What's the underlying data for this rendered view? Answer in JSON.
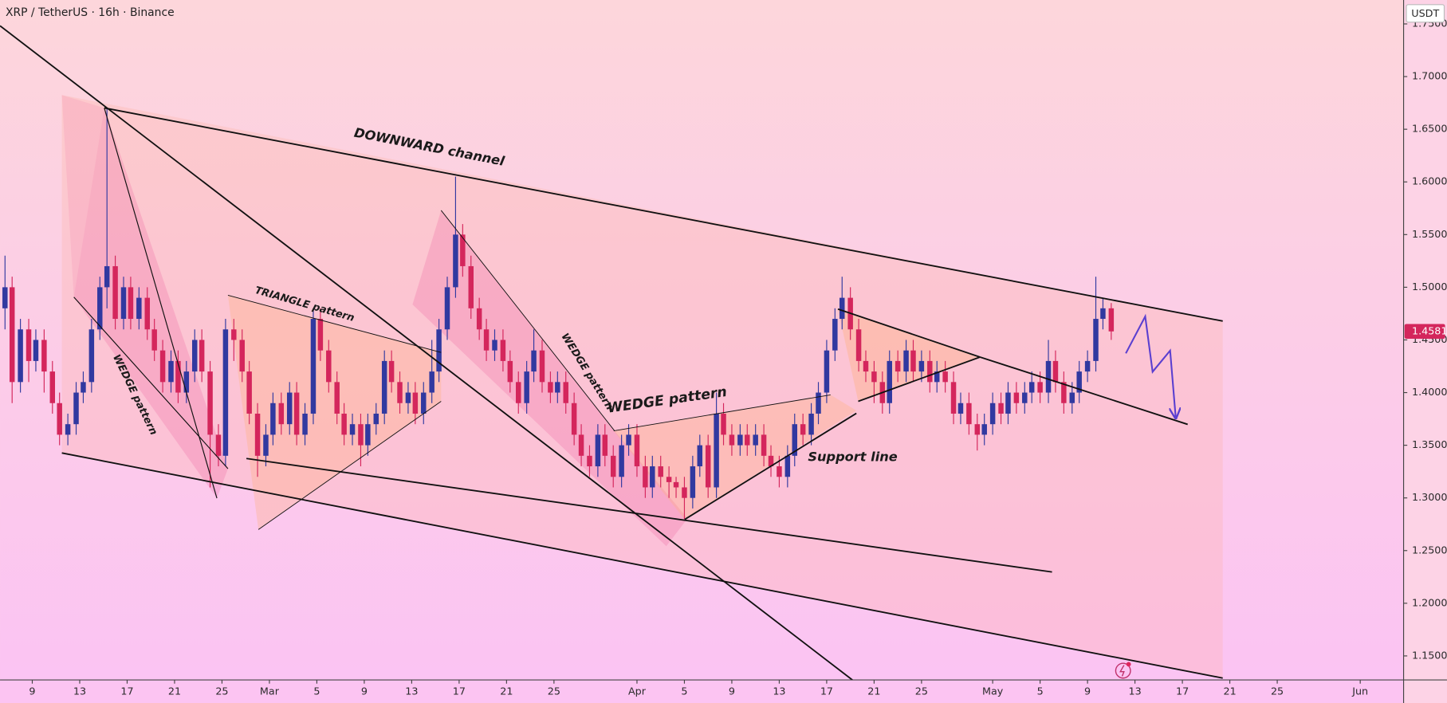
{
  "chart_data": {
    "type": "candlestick",
    "title": "XRP / TetherUS · 16h · Binance",
    "currency": "USDT",
    "up_color": "#3139a0",
    "down_color": "#d4265c",
    "annotations": [
      "DOWNWARD channel",
      "TRIANGLE pattern",
      "WEDGE pattern",
      "WEDGE pattern",
      "WEDGE pattern",
      "Support line"
    ],
    "xlim": [
      37.28,
      155.58
    ],
    "xticks": [
      {
        "value": 40,
        "label": "9"
      },
      {
        "value": 44,
        "label": "13"
      },
      {
        "value": 48,
        "label": "17"
      },
      {
        "value": 52,
        "label": "21"
      },
      {
        "value": 56,
        "label": "25"
      },
      {
        "value": 60,
        "label": "Mar"
      },
      {
        "value": 64,
        "label": "5"
      },
      {
        "value": 68,
        "label": "9"
      },
      {
        "value": 72,
        "label": "13"
      },
      {
        "value": 76,
        "label": "17"
      },
      {
        "value": 80,
        "label": "21"
      },
      {
        "value": 84,
        "label": "25"
      },
      {
        "value": 91,
        "label": "Apr"
      },
      {
        "value": 95,
        "label": "5"
      },
      {
        "value": 99,
        "label": "9"
      },
      {
        "value": 103,
        "label": "13"
      },
      {
        "value": 107,
        "label": "17"
      },
      {
        "value": 111,
        "label": "21"
      },
      {
        "value": 115,
        "label": "25"
      },
      {
        "value": 121,
        "label": "May"
      },
      {
        "value": 125,
        "label": "5"
      },
      {
        "value": 129,
        "label": "9"
      },
      {
        "value": 133,
        "label": "13"
      },
      {
        "value": 137,
        "label": "17"
      },
      {
        "value": 141,
        "label": "21"
      },
      {
        "value": 145,
        "label": "25"
      },
      {
        "value": 152,
        "label": "Jun"
      }
    ],
    "ylim": [
      1.1272,
      1.7727
    ],
    "yticks": [
      {
        "value": 1.15,
        "label": "1.1500"
      },
      {
        "value": 1.2,
        "label": "1.2000"
      },
      {
        "value": 1.25,
        "label": "1.2500"
      },
      {
        "value": 1.3,
        "label": "1.3000"
      },
      {
        "value": 1.35,
        "label": "1.3500"
      },
      {
        "value": 1.4,
        "label": "1.4000"
      },
      {
        "value": 1.45,
        "label": "1.4500"
      },
      {
        "value": 1.5,
        "label": "1.5000"
      },
      {
        "value": 1.55,
        "label": "1.5500"
      },
      {
        "value": 1.6,
        "label": "1.6000"
      },
      {
        "value": 1.65,
        "label": "1.6500"
      },
      {
        "value": 1.7,
        "label": "1.7000"
      },
      {
        "value": 1.75,
        "label": "1.7500"
      }
    ],
    "x": [
      37.7,
      38.3,
      39,
      39.7,
      40.3,
      41,
      41.7,
      42.3,
      43,
      43.7,
      44.3,
      45,
      45.7,
      46.3,
      47,
      47.7,
      48.3,
      49,
      49.7,
      50.3,
      51,
      51.7,
      52.3,
      53,
      53.7,
      54.3,
      55,
      55.7,
      56.3,
      57,
      57.7,
      58.3,
      59,
      59.7,
      60.3,
      61,
      61.7,
      62.3,
      63,
      63.7,
      64.3,
      65,
      65.7,
      66.3,
      67,
      67.7,
      68.3,
      69,
      69.7,
      70.3,
      71,
      71.7,
      72.3,
      73,
      73.7,
      74.3,
      75,
      75.7,
      76.3,
      77,
      77.7,
      78.3,
      79,
      79.7,
      80.3,
      81,
      81.7,
      82.3,
      83,
      83.7,
      84.3,
      85,
      85.7,
      86.3,
      87,
      87.7,
      88.3,
      89,
      89.7,
      90.3,
      91,
      91.7,
      92.3,
      93,
      93.7,
      94.3,
      95,
      95.7,
      96.3,
      97,
      97.7,
      98.3,
      99,
      99.7,
      100.3,
      101,
      101.7,
      102.3,
      103,
      103.7,
      104.3,
      105,
      105.7,
      106.3,
      107,
      107.7,
      108.3,
      109,
      109.7,
      110.3,
      111,
      111.7,
      112.3,
      113,
      113.7,
      114.3,
      115,
      115.7,
      116.3,
      117,
      117.7,
      118.3,
      119,
      119.7,
      120.3,
      121,
      121.7,
      122.3,
      123,
      123.7,
      124.3,
      125,
      125.7,
      126.3,
      127,
      127.7,
      128.3,
      129,
      129.7,
      130.3,
      131
    ],
    "open": [
      1.48,
      1.5,
      1.41,
      1.46,
      1.43,
      1.45,
      1.42,
      1.39,
      1.36,
      1.37,
      1.4,
      1.41,
      1.46,
      1.5,
      1.52,
      1.47,
      1.5,
      1.47,
      1.49,
      1.46,
      1.44,
      1.41,
      1.43,
      1.4,
      1.42,
      1.45,
      1.42,
      1.36,
      1.34,
      1.46,
      1.45,
      1.42,
      1.38,
      1.34,
      1.36,
      1.39,
      1.37,
      1.4,
      1.36,
      1.38,
      1.47,
      1.44,
      1.41,
      1.38,
      1.36,
      1.37,
      1.35,
      1.37,
      1.38,
      1.43,
      1.41,
      1.39,
      1.4,
      1.38,
      1.4,
      1.42,
      1.46,
      1.5,
      1.55,
      1.52,
      1.48,
      1.46,
      1.44,
      1.45,
      1.43,
      1.41,
      1.39,
      1.42,
      1.44,
      1.41,
      1.4,
      1.41,
      1.39,
      1.36,
      1.34,
      1.33,
      1.36,
      1.34,
      1.32,
      1.35,
      1.36,
      1.33,
      1.31,
      1.33,
      1.32,
      1.315,
      1.31,
      1.3,
      1.33,
      1.35,
      1.31,
      1.38,
      1.36,
      1.35,
      1.36,
      1.35,
      1.36,
      1.34,
      1.33,
      1.32,
      1.34,
      1.37,
      1.36,
      1.38,
      1.4,
      1.44,
      1.47,
      1.49,
      1.46,
      1.43,
      1.42,
      1.41,
      1.39,
      1.43,
      1.42,
      1.44,
      1.42,
      1.43,
      1.41,
      1.42,
      1.41,
      1.38,
      1.39,
      1.37,
      1.36,
      1.37,
      1.39,
      1.38,
      1.4,
      1.39,
      1.4,
      1.41,
      1.4,
      1.43,
      1.41,
      1.39,
      1.4,
      1.42,
      1.43,
      1.47,
      1.48
    ],
    "high": [
      1.53,
      1.51,
      1.47,
      1.47,
      1.46,
      1.46,
      1.43,
      1.4,
      1.38,
      1.41,
      1.42,
      1.47,
      1.51,
      1.67,
      1.53,
      1.51,
      1.51,
      1.5,
      1.5,
      1.47,
      1.45,
      1.44,
      1.44,
      1.43,
      1.46,
      1.46,
      1.43,
      1.37,
      1.47,
      1.47,
      1.46,
      1.43,
      1.39,
      1.37,
      1.4,
      1.4,
      1.41,
      1.41,
      1.39,
      1.48,
      1.48,
      1.45,
      1.42,
      1.39,
      1.38,
      1.38,
      1.38,
      1.39,
      1.44,
      1.44,
      1.42,
      1.41,
      1.41,
      1.41,
      1.45,
      1.47,
      1.51,
      1.605,
      1.56,
      1.53,
      1.49,
      1.47,
      1.46,
      1.46,
      1.44,
      1.42,
      1.43,
      1.46,
      1.45,
      1.42,
      1.42,
      1.42,
      1.4,
      1.37,
      1.35,
      1.37,
      1.37,
      1.35,
      1.36,
      1.37,
      1.37,
      1.34,
      1.34,
      1.34,
      1.33,
      1.32,
      1.32,
      1.34,
      1.36,
      1.36,
      1.4,
      1.39,
      1.37,
      1.37,
      1.37,
      1.37,
      1.37,
      1.35,
      1.34,
      1.35,
      1.38,
      1.38,
      1.39,
      1.41,
      1.45,
      1.48,
      1.51,
      1.5,
      1.47,
      1.44,
      1.43,
      1.42,
      1.44,
      1.44,
      1.45,
      1.45,
      1.44,
      1.44,
      1.43,
      1.43,
      1.42,
      1.4,
      1.4,
      1.38,
      1.38,
      1.4,
      1.4,
      1.41,
      1.41,
      1.41,
      1.42,
      1.42,
      1.45,
      1.44,
      1.42,
      1.41,
      1.43,
      1.44,
      1.51,
      1.49,
      1.485
    ],
    "low": [
      1.46,
      1.39,
      1.4,
      1.41,
      1.42,
      1.4,
      1.38,
      1.35,
      1.35,
      1.36,
      1.39,
      1.4,
      1.45,
      1.48,
      1.46,
      1.46,
      1.46,
      1.46,
      1.45,
      1.43,
      1.4,
      1.4,
      1.39,
      1.39,
      1.41,
      1.41,
      1.31,
      1.33,
      1.33,
      1.43,
      1.41,
      1.37,
      1.32,
      1.33,
      1.35,
      1.36,
      1.36,
      1.35,
      1.35,
      1.37,
      1.43,
      1.4,
      1.37,
      1.35,
      1.35,
      1.33,
      1.34,
      1.36,
      1.37,
      1.4,
      1.38,
      1.38,
      1.37,
      1.37,
      1.39,
      1.41,
      1.45,
      1.49,
      1.51,
      1.47,
      1.45,
      1.43,
      1.43,
      1.42,
      1.4,
      1.38,
      1.38,
      1.41,
      1.4,
      1.39,
      1.39,
      1.38,
      1.35,
      1.33,
      1.32,
      1.32,
      1.33,
      1.31,
      1.31,
      1.34,
      1.32,
      1.3,
      1.3,
      1.31,
      1.3,
      1.3,
      1.28,
      1.29,
      1.32,
      1.3,
      1.3,
      1.35,
      1.34,
      1.34,
      1.34,
      1.34,
      1.33,
      1.32,
      1.31,
      1.31,
      1.33,
      1.35,
      1.35,
      1.37,
      1.39,
      1.43,
      1.46,
      1.45,
      1.42,
      1.41,
      1.39,
      1.38,
      1.38,
      1.41,
      1.41,
      1.41,
      1.41,
      1.4,
      1.4,
      1.4,
      1.37,
      1.37,
      1.36,
      1.345,
      1.35,
      1.36,
      1.37,
      1.37,
      1.38,
      1.38,
      1.39,
      1.39,
      1.39,
      1.4,
      1.38,
      1.38,
      1.39,
      1.41,
      1.42,
      1.46,
      1.45
    ],
    "close": [
      1.5,
      1.41,
      1.46,
      1.43,
      1.45,
      1.42,
      1.39,
      1.36,
      1.37,
      1.4,
      1.41,
      1.46,
      1.5,
      1.52,
      1.47,
      1.5,
      1.47,
      1.49,
      1.46,
      1.44,
      1.41,
      1.43,
      1.4,
      1.42,
      1.45,
      1.42,
      1.36,
      1.34,
      1.46,
      1.45,
      1.42,
      1.38,
      1.34,
      1.36,
      1.39,
      1.37,
      1.4,
      1.36,
      1.38,
      1.47,
      1.44,
      1.41,
      1.38,
      1.36,
      1.37,
      1.35,
      1.37,
      1.38,
      1.43,
      1.41,
      1.39,
      1.4,
      1.38,
      1.4,
      1.42,
      1.46,
      1.5,
      1.55,
      1.52,
      1.48,
      1.46,
      1.44,
      1.45,
      1.43,
      1.41,
      1.39,
      1.42,
      1.44,
      1.41,
      1.4,
      1.41,
      1.39,
      1.36,
      1.34,
      1.33,
      1.36,
      1.34,
      1.32,
      1.35,
      1.36,
      1.33,
      1.31,
      1.33,
      1.32,
      1.315,
      1.31,
      1.3,
      1.33,
      1.35,
      1.31,
      1.38,
      1.36,
      1.35,
      1.36,
      1.35,
      1.36,
      1.34,
      1.33,
      1.32,
      1.34,
      1.37,
      1.36,
      1.38,
      1.4,
      1.44,
      1.47,
      1.49,
      1.46,
      1.43,
      1.42,
      1.41,
      1.39,
      1.43,
      1.42,
      1.44,
      1.42,
      1.43,
      1.41,
      1.42,
      1.41,
      1.38,
      1.39,
      1.37,
      1.36,
      1.37,
      1.39,
      1.38,
      1.4,
      1.39,
      1.4,
      1.41,
      1.4,
      1.43,
      1.41,
      1.39,
      1.4,
      1.42,
      1.43,
      1.47,
      1.48,
      1.4581
    ]
  }
}
